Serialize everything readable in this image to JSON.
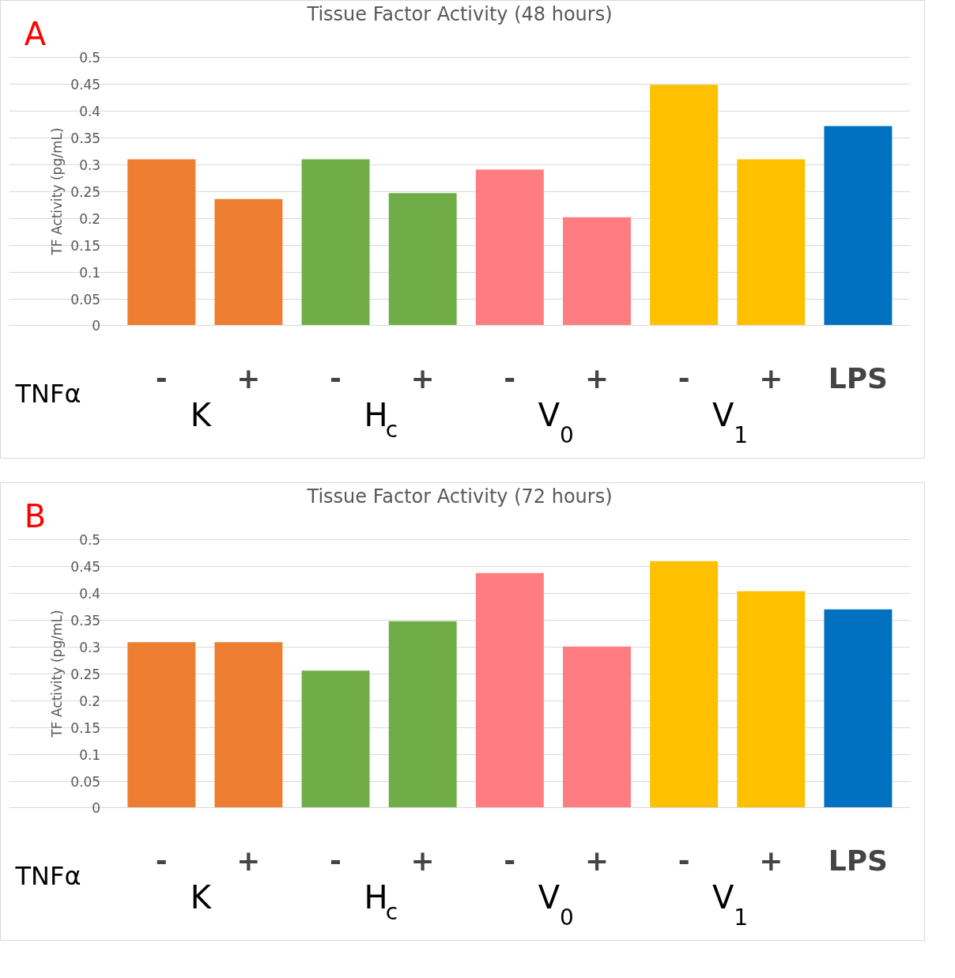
{
  "chart_data": [
    {
      "type": "bar",
      "title": "Tissue Factor Activity (48 hours)",
      "ylabel": "TF Activity (pg/mL)",
      "categories": [
        "-",
        "+",
        "-",
        "+",
        "-",
        "+",
        "-",
        "+",
        "LPS"
      ],
      "values": [
        0.31,
        0.236,
        0.31,
        0.247,
        0.291,
        0.202,
        0.449,
        0.31,
        0.372
      ],
      "colors": [
        "#ed7d31",
        "#ed7d31",
        "#70ad47",
        "#70ad47",
        "#ff7c80",
        "#ff7c80",
        "#ffc000",
        "#ffc000",
        "#0070c0"
      ],
      "ylim": [
        0,
        0.5
      ],
      "yticks": [
        0,
        0.05,
        0.1,
        0.15,
        0.2,
        0.25,
        0.3,
        0.35,
        0.4,
        0.45,
        0.5
      ],
      "grid": "y",
      "annotations": [
        "A",
        "TNFα",
        "K",
        "H$_{c}$",
        "V$_{0}$",
        "V$_{1}$"
      ]
    },
    {
      "type": "bar",
      "title": "Tissue Factor Activity (72 hours)",
      "ylabel": "TF Activity (pg/mL)",
      "categories": [
        "-",
        "+",
        "-",
        "+",
        "-",
        "+",
        "-",
        "+",
        "LPS"
      ],
      "values": [
        0.309,
        0.309,
        0.256,
        0.348,
        0.438,
        0.301,
        0.46,
        0.404,
        0.37
      ],
      "colors": [
        "#ed7d31",
        "#ed7d31",
        "#70ad47",
        "#70ad47",
        "#ff7c80",
        "#ff7c80",
        "#ffc000",
        "#ffc000",
        "#0070c0"
      ],
      "ylim": [
        0,
        0.5
      ],
      "yticks": [
        0,
        0.05,
        0.1,
        0.15,
        0.2,
        0.25,
        0.3,
        0.35,
        0.4,
        0.45,
        0.5
      ],
      "grid": "y",
      "annotations": [
        "B",
        "TNFα",
        "K",
        "H$_{c}$",
        "V$_{0}$",
        "V$_{1}$"
      ]
    }
  ]
}
